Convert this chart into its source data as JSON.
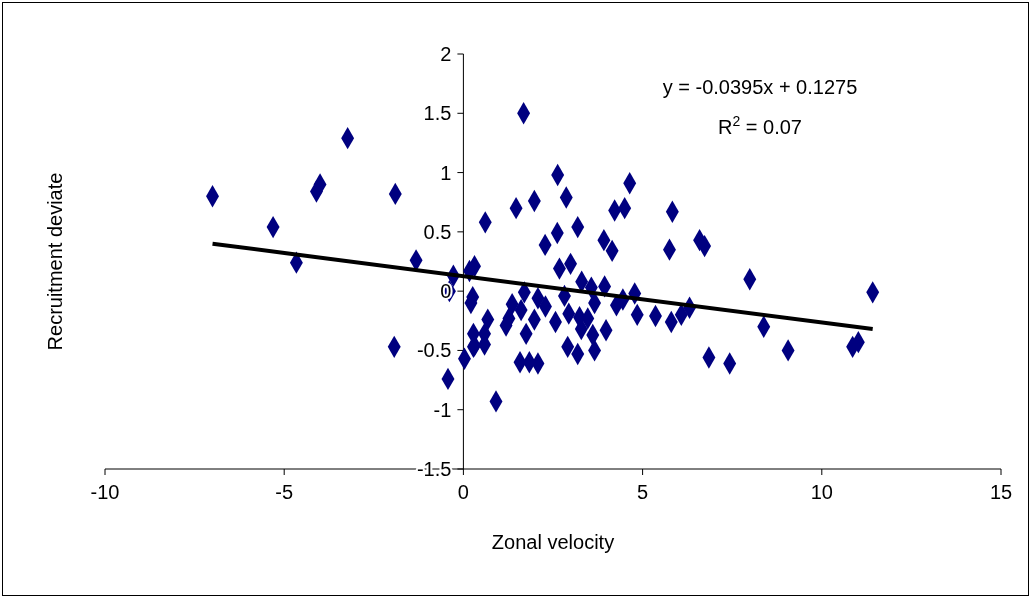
{
  "chart_data": {
    "type": "scatter",
    "xlabel": "Zonal velocity",
    "ylabel": "Recruitment deviate",
    "annotations": [
      "y = -0.0395x + 0.1275",
      "R$^{2}$ = 0.07"
    ],
    "xlim": [
      -10,
      15
    ],
    "xticks": [
      -10,
      -5,
      0,
      5,
      10,
      15
    ],
    "ylim": [
      -1.5,
      2
    ],
    "yticks": [
      -1.5,
      -1,
      -0.5,
      0,
      0.5,
      1,
      1.5,
      2
    ],
    "grid": false,
    "marker": "diamond",
    "series": [
      {
        "color": "#000080",
        "x": [
          -7.0,
          -5.31,
          -4.66,
          -4.1,
          -4.0,
          -3.23,
          -1.9,
          -1.32,
          -0.28,
          -0.39,
          -1.93,
          0.03,
          -0.43,
          0.26,
          0.21,
          0.31,
          0.17,
          0.28,
          0.28,
          1.68,
          2.63,
          2.87,
          1.47,
          1.98,
          0.61,
          4.64,
          4.22,
          4.5,
          5.83,
          2.62,
          3.19,
          3.92,
          4.15,
          5.75,
          6.59,
          6.73,
          2.28,
          2.68,
          2.99,
          7.99,
          1.7,
          2.08,
          1.36,
          1.61,
          2.29,
          1.98,
          1.27,
          1.19,
          0.68,
          2.82,
          3.3,
          3.57,
          3.94,
          3.66,
          2.94,
          3.24,
          3.47,
          2.57,
          4.27,
          4.45,
          4.78,
          4.85,
          5.36,
          5.8,
          6.08,
          6.31,
          1.75,
          3.29,
          3.61,
          3.98,
          0.59,
          0.31,
          0.59,
          2.91,
          3.19,
          3.66,
          1.58,
          1.84,
          2.08,
          0.91,
          6.85,
          7.43,
          8.38,
          9.06,
          10.86,
          11.02,
          11.42
        ],
        "values": [
          0.8,
          0.54,
          0.24,
          0.84,
          0.9,
          1.29,
          0.82,
          0.26,
          0.13,
          0.0,
          -0.47,
          -0.57,
          -0.74,
          -0.05,
          -0.1,
          0.21,
          0.17,
          -0.36,
          -0.47,
          1.5,
          0.98,
          0.79,
          0.7,
          0.76,
          0.58,
          0.91,
          0.68,
          0.7,
          0.67,
          0.49,
          0.54,
          0.43,
          0.34,
          0.35,
          0.43,
          0.38,
          0.39,
          0.19,
          0.23,
          0.1,
          -0.01,
          -0.06,
          -0.11,
          -0.16,
          -0.13,
          -0.24,
          -0.23,
          -0.29,
          -0.24,
          -0.04,
          0.08,
          0.03,
          0.04,
          -0.1,
          -0.19,
          -0.22,
          -0.23,
          -0.26,
          -0.12,
          -0.07,
          -0.02,
          -0.2,
          -0.21,
          -0.26,
          -0.2,
          -0.14,
          -0.36,
          -0.32,
          -0.37,
          -0.33,
          -0.36,
          -0.46,
          -0.45,
          -0.47,
          -0.53,
          -0.5,
          -0.6,
          -0.6,
          -0.61,
          -0.93,
          -0.56,
          -0.61,
          -0.3,
          -0.5,
          -0.47,
          -0.43,
          -0.01
        ]
      },
      {
        "type": "line",
        "color": "#000000",
        "line_style": "solid",
        "marker": "none",
        "x": [
          -7.0,
          11.42
        ],
        "values": [
          0.4,
          -0.32
        ]
      }
    ]
  }
}
